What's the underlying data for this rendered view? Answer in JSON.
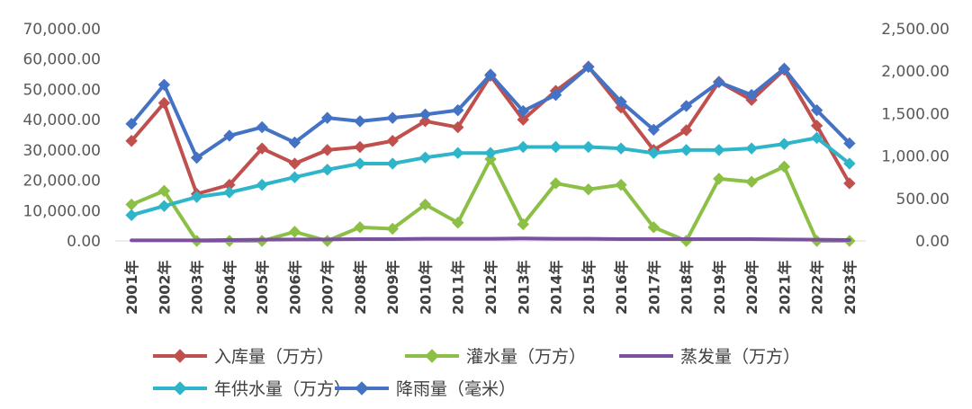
{
  "chart_data": {
    "type": "line",
    "categories": [
      "2001年",
      "2002年",
      "2003年",
      "2004年",
      "2005年",
      "2006年",
      "2007年",
      "2008年",
      "2009年",
      "2010年",
      "2011年",
      "2012年",
      "2013年",
      "2014年",
      "2015年",
      "2016年",
      "2017年",
      "2018年",
      "2019年",
      "2020年",
      "2021年",
      "2022年",
      "2023年"
    ],
    "left_axis": {
      "ylim": [
        0,
        70000
      ],
      "ticks": [
        "0.00",
        "10,000.00",
        "20,000.00",
        "30,000.00",
        "40,000.00",
        "50,000.00",
        "60,000.00",
        "70,000.00"
      ]
    },
    "right_axis": {
      "ylim": [
        0,
        2500
      ],
      "ticks": [
        "0.00",
        "500.00",
        "1,000.00",
        "1,500.00",
        "2,000.00",
        "2,500.00"
      ]
    },
    "grid": false,
    "legend_position": "bottom",
    "series": [
      {
        "name": "入库量（万方）",
        "axis": "left",
        "color": "#c0504d",
        "values": [
          33000,
          45500,
          15500,
          18500,
          30500,
          25500,
          30000,
          31000,
          33000,
          39500,
          37500,
          54500,
          40000,
          49500,
          57500,
          44000,
          30000,
          36500,
          52500,
          46500,
          56500,
          38000,
          19000
        ]
      },
      {
        "name": "灌水量（万方）",
        "axis": "left",
        "color": "#8cbf45",
        "values": [
          12000,
          16500,
          0,
          0,
          0,
          3000,
          0,
          4500,
          4000,
          12000,
          6000,
          27000,
          5500,
          19000,
          17000,
          18500,
          4500,
          0,
          20500,
          19500,
          24500,
          0,
          0
        ]
      },
      {
        "name": "蒸发量（万方）",
        "axis": "left",
        "color": "#7b50a0",
        "values": [
          200,
          200,
          200,
          300,
          400,
          500,
          500,
          600,
          600,
          700,
          700,
          700,
          800,
          700,
          700,
          600,
          600,
          600,
          600,
          600,
          500,
          400,
          300
        ]
      },
      {
        "name": "年供水量（万方）",
        "axis": "left",
        "color": "#2fb5c9",
        "values": [
          8500,
          11500,
          14500,
          16000,
          18500,
          21000,
          23500,
          25500,
          25500,
          27500,
          29000,
          29000,
          31000,
          31000,
          31000,
          30500,
          29000,
          30000,
          30000,
          30500,
          32000,
          34000,
          25500
        ]
      },
      {
        "name": "降雨量（毫米）",
        "axis": "right",
        "color": "#4472c4",
        "values": [
          1380,
          1840,
          980,
          1240,
          1340,
          1160,
          1450,
          1410,
          1450,
          1490,
          1540,
          1960,
          1530,
          1720,
          2050,
          1640,
          1310,
          1590,
          1870,
          1720,
          2030,
          1540,
          1150
        ]
      }
    ]
  }
}
